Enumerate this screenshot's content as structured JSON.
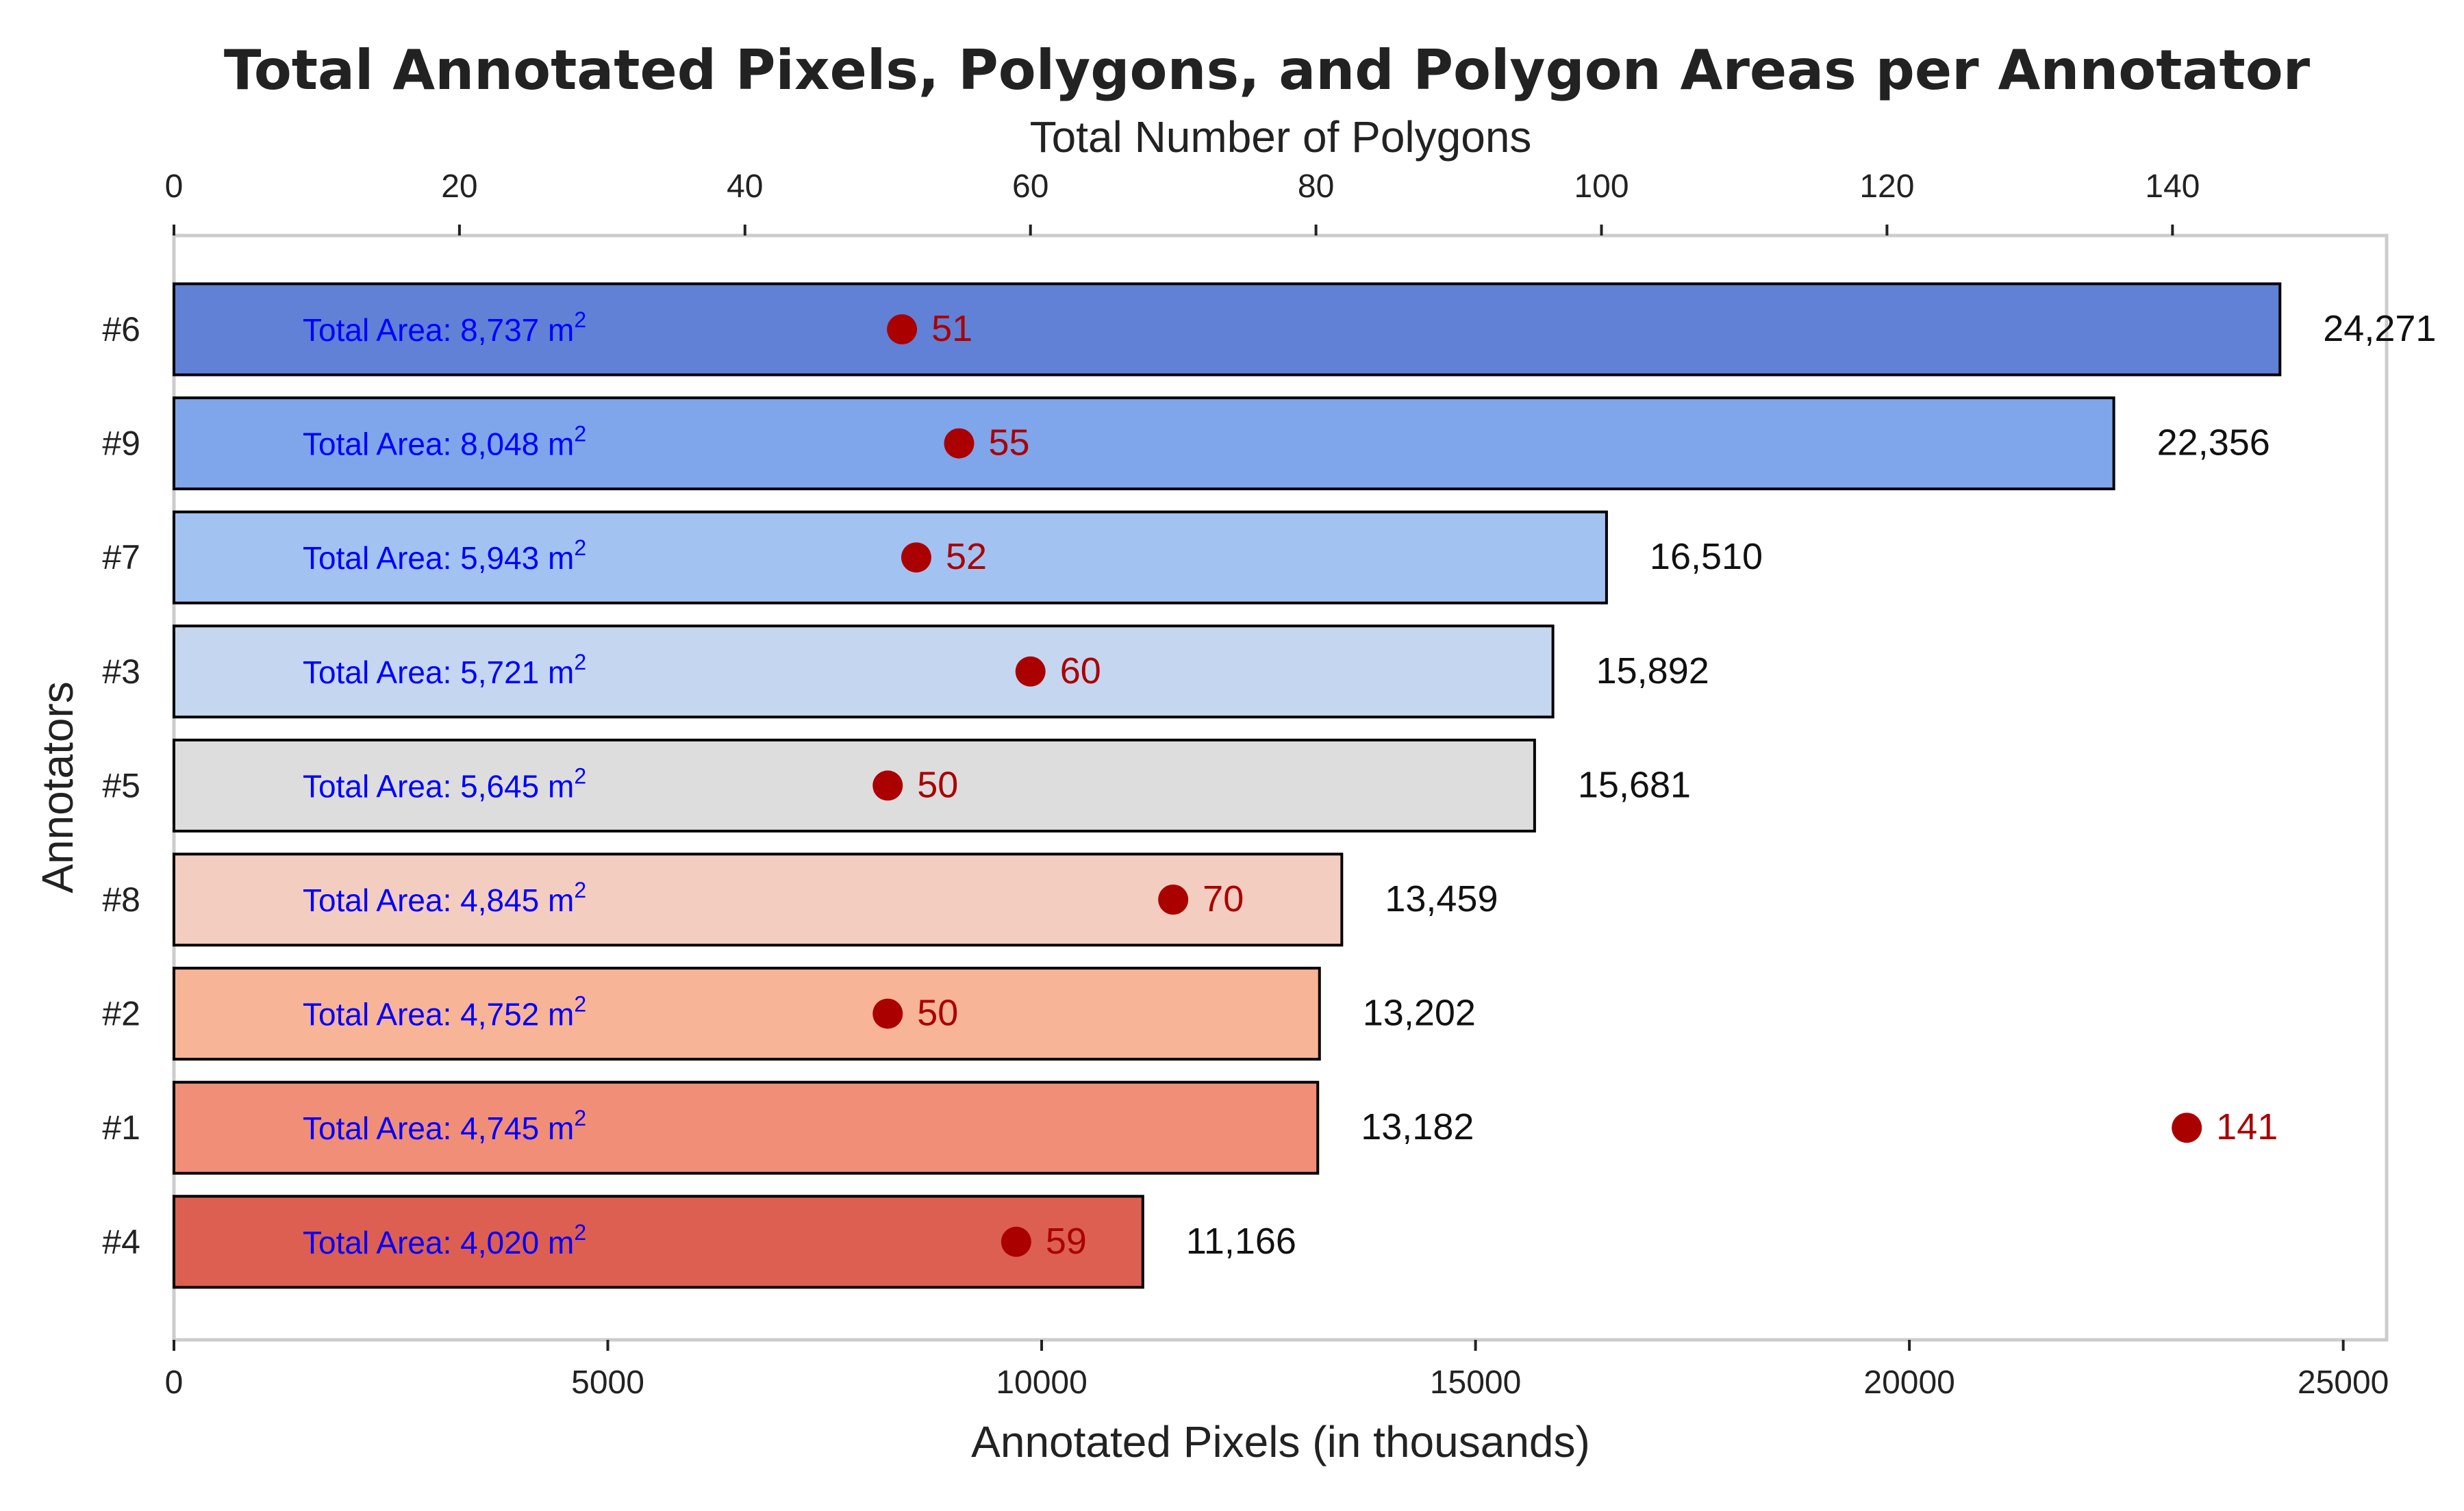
{
  "chart_data": {
    "type": "bar",
    "orientation": "horizontal",
    "title": "Total Annotated Pixels, Polygons, and Polygon Areas per Annotator",
    "xlabel": "Annotated Pixels (in thousands)",
    "x2label": "Total Number of Polygons",
    "ylabel": "Annotators",
    "xlim": [
      0,
      25500
    ],
    "x2lim": [
      0,
      155
    ],
    "xticks": [
      0,
      5000,
      10000,
      15000,
      20000,
      25000
    ],
    "x2ticks": [
      0,
      20,
      40,
      60,
      80,
      100,
      120,
      140
    ],
    "grid": false,
    "categories": [
      "#6",
      "#9",
      "#7",
      "#3",
      "#5",
      "#8",
      "#2",
      "#1",
      "#4"
    ],
    "series": [
      {
        "values": [
          24271,
          22356,
          16510,
          15892,
          15681,
          13459,
          13202,
          13182,
          11166
        ],
        "value_labels": [
          "24,271",
          "22,356",
          "16,510",
          "15,892",
          "15,681",
          "13,459",
          "13,202",
          "13,182",
          "11,166"
        ],
        "colors": [
          "#6081d6",
          "#7fa5ea",
          "#a2c2f2",
          "#c5d6f0",
          "#dddddd",
          "#f3cdbf",
          "#f7b497",
          "#f08e77",
          "#dc5f52"
        ],
        "area_label_prefix": "Total Area: ",
        "area_label_unit": "m",
        "area_label_exp": "2",
        "area_labels": [
          "8,737",
          "8,048",
          "5,943",
          "5,721",
          "5,645",
          "4,845",
          "4,752",
          "4,745",
          "4,020"
        ]
      },
      {
        "axis": "top",
        "marker": "circle",
        "values": [
          51,
          55,
          52,
          60,
          50,
          70,
          50,
          141,
          59
        ]
      }
    ],
    "colors": {
      "bar_edge": "#000000",
      "area_text": "#0000ff",
      "marker": "#aa0000",
      "frame": "#cccccc"
    }
  }
}
